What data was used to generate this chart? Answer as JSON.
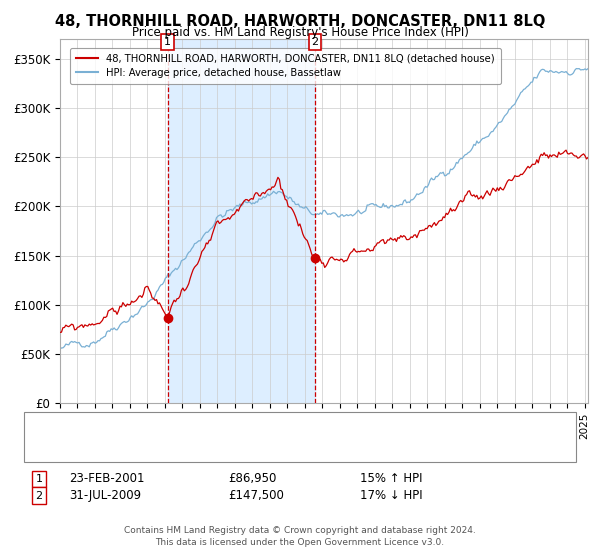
{
  "title": "48, THORNHILL ROAD, HARWORTH, DONCASTER, DN11 8LQ",
  "subtitle": "Price paid vs. HM Land Registry's House Price Index (HPI)",
  "ylabel_ticks": [
    "£0",
    "£50K",
    "£100K",
    "£150K",
    "£200K",
    "£250K",
    "£300K",
    "£350K"
  ],
  "ytick_vals": [
    0,
    50000,
    100000,
    150000,
    200000,
    250000,
    300000,
    350000
  ],
  "ylim": [
    0,
    370000
  ],
  "sale1_date": "23-FEB-2001",
  "sale1_price": 86950,
  "sale1_hpi": "15% ↑ HPI",
  "sale1_label": "1",
  "sale2_date": "31-JUL-2009",
  "sale2_price": 147500,
  "sale2_hpi": "17% ↓ HPI",
  "sale2_label": "2",
  "sale1_x": 2001.15,
  "sale2_x": 2009.58,
  "legend_line1": "48, THORNHILL ROAD, HARWORTH, DONCASTER, DN11 8LQ (detached house)",
  "legend_line2": "HPI: Average price, detached house, Bassetlaw",
  "footer": "Contains HM Land Registry data © Crown copyright and database right 2024.\nThis data is licensed under the Open Government Licence v3.0.",
  "line_color_red": "#cc0000",
  "line_color_blue": "#7ab0d4",
  "shade_color": "#ddeeff",
  "background_color": "#ffffff",
  "grid_color": "#cccccc",
  "xmin": 1995.0,
  "xmax": 2025.2
}
